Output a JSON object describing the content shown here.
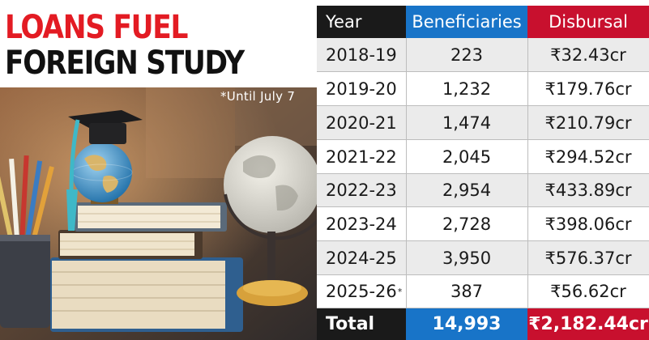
{
  "headline": {
    "line1": "LOANS FUEL",
    "line2": "FOREIGN STUDY"
  },
  "note": "*Until July 7",
  "colors": {
    "headline_red": "#e31b23",
    "header_black": "#1a1a1a",
    "beneficiaries_blue": "#1874c8",
    "disbursal_red": "#c8102e"
  },
  "table": {
    "headers": {
      "year": "Year",
      "beneficiaries": "Beneficiaries",
      "disbursal": "Disbursal"
    },
    "rows": [
      {
        "year": "2018-19",
        "beneficiaries": "223",
        "disbursal": "₹32.43cr"
      },
      {
        "year": "2019-20",
        "beneficiaries": "1,232",
        "disbursal": "₹179.76cr"
      },
      {
        "year": "2020-21",
        "beneficiaries": "1,474",
        "disbursal": "₹210.79cr"
      },
      {
        "year": "2021-22",
        "beneficiaries": "2,045",
        "disbursal": "₹294.52cr"
      },
      {
        "year": "2022-23",
        "beneficiaries": "2,954",
        "disbursal": "₹433.89cr"
      },
      {
        "year": "2023-24",
        "beneficiaries": "2,728",
        "disbursal": "₹398.06cr"
      },
      {
        "year": "2024-25",
        "beneficiaries": "3,950",
        "disbursal": "₹576.37cr"
      },
      {
        "year": "2025-26",
        "year_mark": "*",
        "beneficiaries": "387",
        "disbursal": "₹56.62cr"
      }
    ],
    "total": {
      "label": "Total",
      "beneficiaries": "14,993",
      "disbursal": "₹2,182.44cr"
    }
  }
}
